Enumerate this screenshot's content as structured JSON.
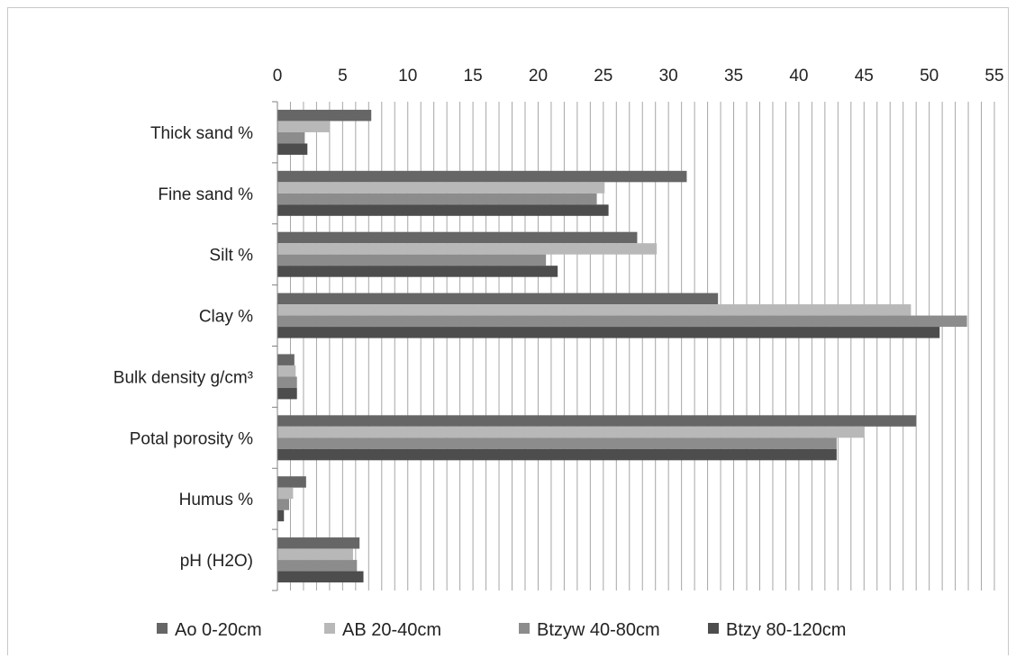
{
  "chart_data": {
    "type": "bar",
    "orientation": "horizontal",
    "title": "",
    "xlabel": "",
    "ylabel": "",
    "xlim": [
      0,
      55
    ],
    "x_ticks": [
      0,
      5,
      10,
      15,
      20,
      25,
      30,
      35,
      40,
      45,
      50,
      55
    ],
    "minor_gridline_step": 1,
    "grid": true,
    "legend_position": "bottom",
    "categories": [
      "Thick sand %",
      "Fine sand %",
      "Silt %",
      "Clay %",
      "Bulk density g/cm³",
      "Potal porosity %",
      "Humus %",
      "pH (H2O)"
    ],
    "series": [
      {
        "name": "Ao 0-20cm",
        "color": "#666666",
        "values": [
          7.2,
          31.4,
          27.6,
          33.8,
          1.3,
          49.0,
          2.2,
          6.3
        ]
      },
      {
        "name": "AB 20-40cm",
        "color": "#b8b8b8",
        "values": [
          4.0,
          25.1,
          29.1,
          48.6,
          1.4,
          45.0,
          1.2,
          5.8
        ]
      },
      {
        "name": "Btzyw 40-80cm",
        "color": "#8c8c8c",
        "values": [
          2.1,
          24.5,
          20.6,
          52.9,
          1.5,
          42.9,
          0.9,
          6.1
        ]
      },
      {
        "name": "Btzy 80-120cm",
        "color": "#4d4d4d",
        "values": [
          2.3,
          25.4,
          21.5,
          50.8,
          1.5,
          42.9,
          0.5,
          6.6
        ]
      }
    ]
  }
}
